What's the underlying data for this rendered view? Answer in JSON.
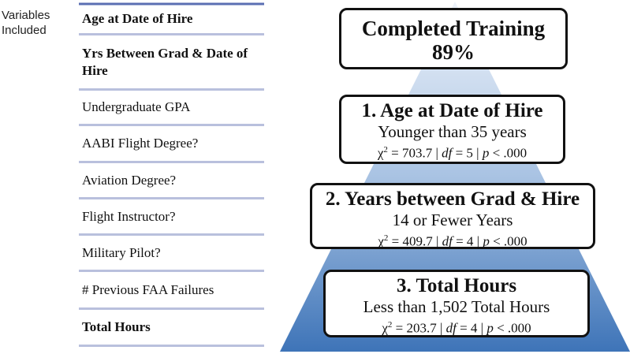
{
  "variables": {
    "label": "Variables Included",
    "items": [
      {
        "text": "Age at Date of Hire",
        "bold": true
      },
      {
        "text": "Yrs Between Grad & Date of Hire",
        "bold": true
      },
      {
        "text": "Undergraduate GPA",
        "bold": false
      },
      {
        "text": "AABI Flight Degree?",
        "bold": false
      },
      {
        "text": "Aviation Degree?",
        "bold": false
      },
      {
        "text": "Flight Instructor?",
        "bold": false
      },
      {
        "text": "Military Pilot?",
        "bold": false
      },
      {
        "text": "# Previous FAA Failures",
        "bold": false
      },
      {
        "text": "Total Hours",
        "bold": true
      }
    ]
  },
  "pyramid": {
    "top": {
      "title": "Completed Training",
      "value": "89%"
    },
    "levels": [
      {
        "title": "1. Age at Date of Hire",
        "subtitle": "Younger than 35 years",
        "stat": [
          "χ",
          "2",
          " = 703.7 | ",
          "df",
          " = 5 | ",
          "p",
          " < .000"
        ]
      },
      {
        "title": "2. Years between Grad & Hire",
        "subtitle": "14 or Fewer Years",
        "stat": [
          "χ",
          "2",
          " = 409.7 | ",
          "df",
          " = 4 | ",
          "p",
          " < .000"
        ]
      },
      {
        "title": "3. Total Hours",
        "subtitle": "Less than 1,502 Total Hours",
        "stat": [
          "χ",
          "2",
          " = 203.7 | ",
          "df",
          " = 4 | ",
          "p",
          " < .000"
        ]
      }
    ]
  }
}
